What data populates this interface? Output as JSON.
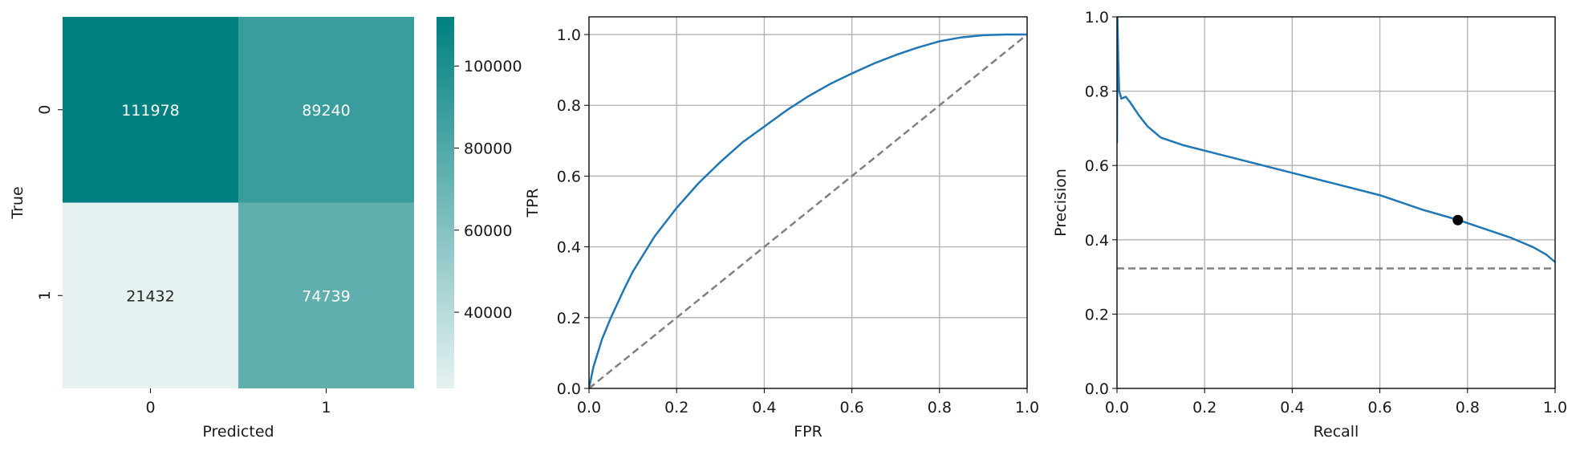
{
  "colors": {
    "teal": "#008080",
    "teal_light": "#e6f2f2",
    "roc_line": "#1f77b4",
    "diagonal": "#808080",
    "grid": "#b0b0b0",
    "operating_point": "#000000"
  },
  "chart_data": [
    {
      "type": "heatmap",
      "xlabel": "Predicted",
      "ylabel": "True",
      "x_categories": [
        "0",
        "1"
      ],
      "y_categories": [
        "0",
        "1"
      ],
      "values": [
        [
          111978,
          89240
        ],
        [
          21432,
          74739
        ]
      ],
      "colorbar": {
        "min": 21432,
        "max": 111978,
        "ticks": [
          40000,
          60000,
          80000,
          100000
        ],
        "tick_labels": [
          "40000",
          "60000",
          "80000",
          "100000"
        ]
      }
    },
    {
      "type": "line",
      "xlabel": "FPR",
      "ylabel": "TPR",
      "xlim": [
        0,
        1
      ],
      "ylim": [
        0,
        1.05
      ],
      "xticks": [
        0,
        0.2,
        0.4,
        0.6,
        0.8,
        1.0
      ],
      "xtick_labels": [
        "0.0",
        "0.2",
        "0.4",
        "0.6",
        "0.8",
        "1.0"
      ],
      "yticks": [
        0,
        0.2,
        0.4,
        0.6,
        0.8,
        1.0
      ],
      "ytick_labels": [
        "0.0",
        "0.2",
        "0.4",
        "0.6",
        "0.8",
        "1.0"
      ],
      "grid": true,
      "series": [
        {
          "style": "solid",
          "x": [
            0,
            0.01,
            0.03,
            0.05,
            0.08,
            0.1,
            0.15,
            0.2,
            0.25,
            0.3,
            0.35,
            0.4,
            0.45,
            0.5,
            0.55,
            0.6,
            0.65,
            0.7,
            0.75,
            0.8,
            0.85,
            0.9,
            0.95,
            1.0
          ],
          "y": [
            0,
            0.06,
            0.14,
            0.2,
            0.28,
            0.33,
            0.43,
            0.51,
            0.58,
            0.64,
            0.695,
            0.74,
            0.785,
            0.825,
            0.86,
            0.89,
            0.918,
            0.942,
            0.963,
            0.981,
            0.992,
            0.998,
            1.0,
            1.0
          ]
        },
        {
          "style": "dashed",
          "x": [
            0,
            1
          ],
          "y": [
            0,
            1
          ]
        }
      ]
    },
    {
      "type": "line",
      "xlabel": "Recall",
      "ylabel": "Precision",
      "xlim": [
        0,
        1
      ],
      "ylim": [
        0,
        1
      ],
      "xticks": [
        0,
        0.2,
        0.4,
        0.6,
        0.8,
        1.0
      ],
      "xtick_labels": [
        "0.0",
        "0.2",
        "0.4",
        "0.6",
        "0.8",
        "1.0"
      ],
      "yticks": [
        0,
        0.2,
        0.4,
        0.6,
        0.8,
        1.0
      ],
      "ytick_labels": [
        "0.0",
        "0.2",
        "0.4",
        "0.6",
        "0.8",
        "1.0"
      ],
      "grid": true,
      "series": [
        {
          "style": "solid",
          "x": [
            0,
            0.001,
            0.003,
            0.005,
            0.01,
            0.02,
            0.03,
            0.05,
            0.07,
            0.1,
            0.15,
            0.2,
            0.3,
            0.4,
            0.5,
            0.6,
            0.7,
            0.78,
            0.85,
            0.9,
            0.95,
            0.98,
            1.0
          ],
          "y": [
            0.66,
            1.0,
            0.88,
            0.8,
            0.78,
            0.785,
            0.77,
            0.735,
            0.705,
            0.675,
            0.655,
            0.64,
            0.61,
            0.58,
            0.55,
            0.52,
            0.48,
            0.453,
            0.425,
            0.405,
            0.38,
            0.36,
            0.34
          ]
        },
        {
          "style": "dashed",
          "x": [
            0,
            1
          ],
          "y": [
            0.323,
            0.323
          ]
        }
      ],
      "points": [
        {
          "x": 0.778,
          "y": 0.453
        }
      ]
    }
  ]
}
